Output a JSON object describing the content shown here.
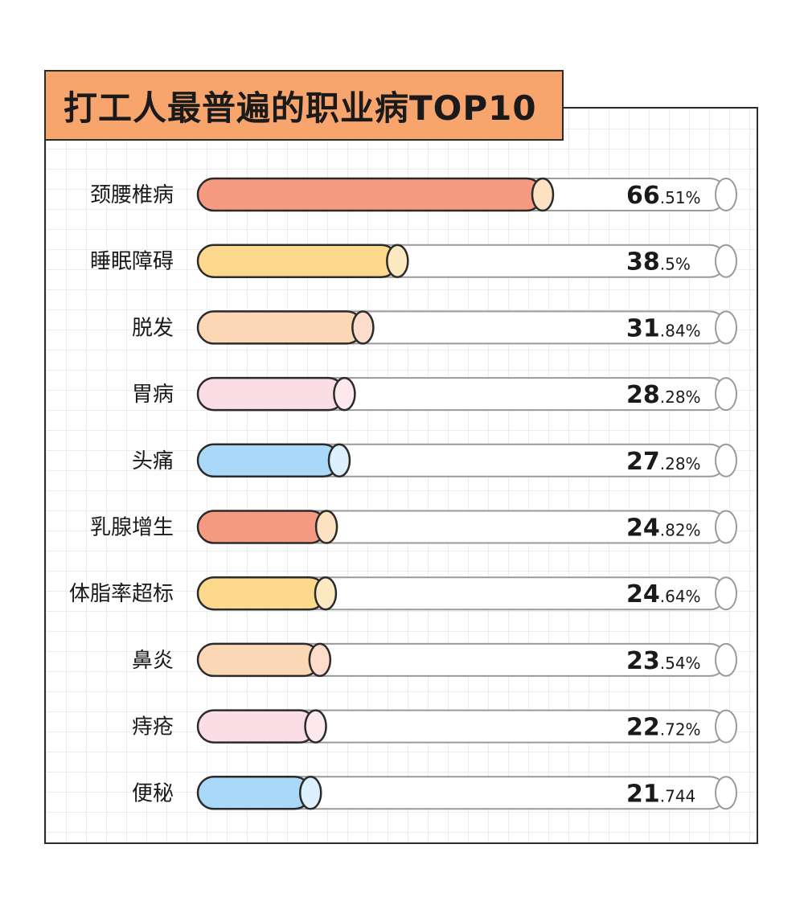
{
  "title": "打工人最普遍的职业病TOP10",
  "colors": {
    "title_bg": "#f7a46d",
    "outline": "#2b2b2b",
    "track_outline": "#9a9a9a",
    "palette": [
      {
        "fill": "#f79a82",
        "cap": "#fde2c2"
      },
      {
        "fill": "#fcd98d",
        "cap": "#fce9c2"
      },
      {
        "fill": "#fcd7b6",
        "cap": "#fddccb"
      },
      {
        "fill": "#fbdde6",
        "cap": "#fde8ee"
      },
      {
        "fill": "#aad8f8",
        "cap": "#dcf1fd"
      }
    ]
  },
  "chart_data": {
    "type": "bar",
    "orientation": "horizontal",
    "title": "打工人最普遍的职业病TOP10",
    "categories": [
      "颈腰椎病",
      "睡眠障碍",
      "脱发",
      "胃病",
      "头痛",
      "乳腺增生",
      "体脂率超标",
      "鼻炎",
      "痔疮",
      "便秘"
    ],
    "values": [
      66.51,
      38.5,
      31.84,
      28.28,
      27.28,
      24.82,
      24.64,
      23.54,
      22.72,
      21.744
    ],
    "value_labels": [
      {
        "int": "66",
        "dec": ".51%"
      },
      {
        "int": "38",
        "dec": ".5%"
      },
      {
        "int": "31",
        "dec": ".84%"
      },
      {
        "int": "28",
        "dec": ".28%"
      },
      {
        "int": "27",
        "dec": ".28%"
      },
      {
        "int": "24",
        "dec": ".82%"
      },
      {
        "int": "24",
        "dec": ".64%"
      },
      {
        "int": "23",
        "dec": ".54%"
      },
      {
        "int": "22",
        "dec": ".72%"
      },
      {
        "int": "21",
        "dec": ".744"
      }
    ],
    "unit": "%",
    "grid": true
  }
}
